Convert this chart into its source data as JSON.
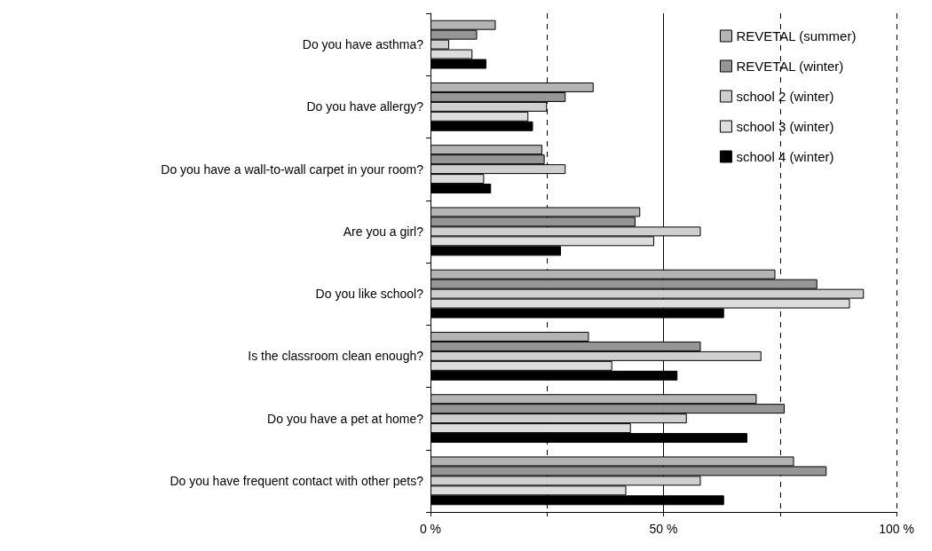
{
  "chart_data": {
    "type": "bar",
    "orientation": "horizontal",
    "categories": [
      "Do you have asthma?",
      "Do you have allergy?",
      "Do you have a wall-to-wall carpet in your room?",
      "Are you a girl?",
      "Do you like school?",
      "Is the classroom clean enough?",
      "Do you have a pet at home?",
      "Do you have frequent contact with other pets?"
    ],
    "series": [
      {
        "name": "REVETAL (summer)",
        "color": "#b4b4b4",
        "values": [
          14,
          35,
          24,
          45,
          74,
          34,
          70,
          78
        ]
      },
      {
        "name": "REVETAL (winter)",
        "color": "#969696",
        "values": [
          10,
          29,
          24.5,
          44,
          83,
          58,
          76,
          85
        ]
      },
      {
        "name": "school 2 (winter)",
        "color": "#cfcfcf",
        "values": [
          4,
          25,
          29,
          58,
          93,
          71,
          55,
          58
        ]
      },
      {
        "name": "school 3 (winter)",
        "color": "#dddddd",
        "values": [
          9,
          21,
          11.5,
          48,
          90,
          39,
          43,
          42
        ]
      },
      {
        "name": "school 4 (winter)",
        "color": "#000000",
        "values": [
          12,
          22,
          13,
          28,
          63,
          53,
          68,
          63
        ]
      }
    ],
    "xlim": [
      0,
      100
    ],
    "xticks": [
      {
        "value": 0,
        "label": "0 %"
      },
      {
        "value": 25,
        "label": null
      },
      {
        "value": 50,
        "label": "50 %"
      },
      {
        "value": 75,
        "label": null
      },
      {
        "value": 100,
        "label": "100 %"
      }
    ],
    "grid": "x",
    "ref_lines": [
      {
        "axis": "x",
        "value": 50,
        "color": "#000000",
        "line_style": "solid"
      }
    ],
    "legend": "top right"
  }
}
